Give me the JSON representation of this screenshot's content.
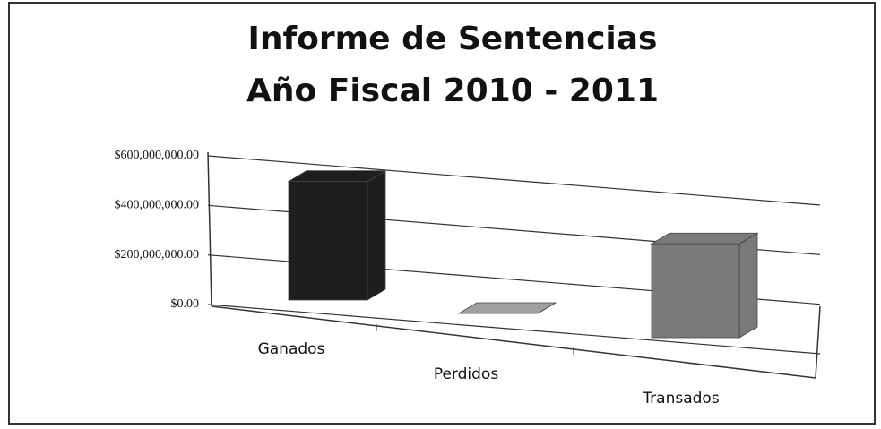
{
  "chart_data": {
    "type": "bar3d",
    "title": [
      "Informe de Sentencias",
      "Año Fiscal 2010 - 2011"
    ],
    "categories": [
      "Ganados",
      "Perdidos",
      "Transados"
    ],
    "values": [
      460000000,
      0,
      340000000
    ],
    "colors": [
      "#1e1e1e",
      "#a0a0a0",
      "#7a7a7a"
    ],
    "ylim": [
      0,
      600000000
    ],
    "yticks": [
      {
        "value": 0,
        "label": "$0.00"
      },
      {
        "value": 200000000,
        "label": "$200,000,000.00"
      },
      {
        "value": 400000000,
        "label": "$400,000,000.00"
      },
      {
        "value": 600000000,
        "label": "$600,000,000.00"
      }
    ],
    "grid": true
  }
}
